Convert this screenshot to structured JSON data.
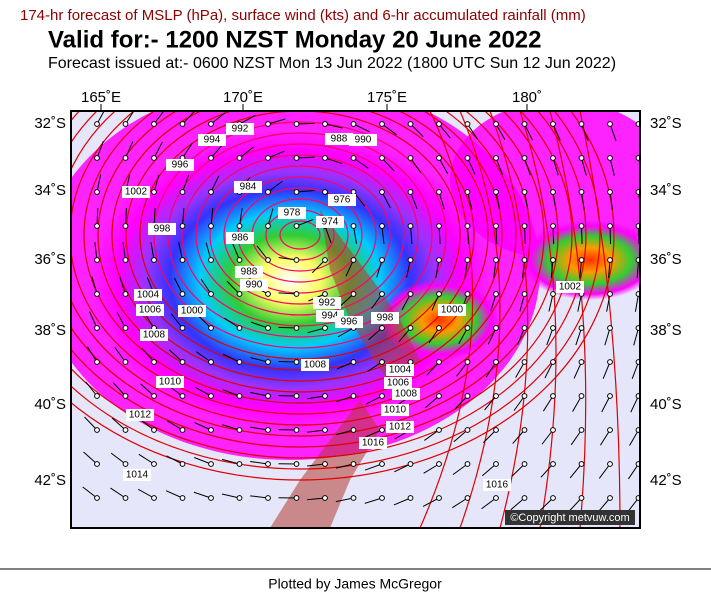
{
  "header": {
    "line1": "174-hr forecast of MSLP (hPa), surface wind (kts) and 6-hr accumulated rainfall (mm)",
    "title": "Valid for:- 1200 NZST Monday 20 June 2022",
    "subtitle": "Forecast issued at:- 0600 NZST Mon 13 Jun 2022 (1800 UTC Sun 12 Jun 2022)"
  },
  "map": {
    "lon_labels": [
      "165˚E",
      "170˚E",
      "175˚E",
      "180˚"
    ],
    "lat_labels": [
      "32˚S",
      "34˚S",
      "36˚S",
      "38˚S",
      "40˚S",
      "42˚S"
    ],
    "isobar_labels": [
      "1002",
      "998",
      "996",
      "994",
      "992",
      "988",
      "990",
      "984",
      "986",
      "988",
      "990",
      "978",
      "974",
      "976",
      "992",
      "994",
      "996",
      "998",
      "1000",
      "1002",
      "1004",
      "1006",
      "1008",
      "1000",
      "1008",
      "1010",
      "1012",
      "1014",
      "1004",
      "1006",
      "1008",
      "1010",
      "1012",
      "1016",
      "1016"
    ],
    "copyright": "©Copyright metvuw.com"
  },
  "footer": "Plotted by James McGregor"
}
